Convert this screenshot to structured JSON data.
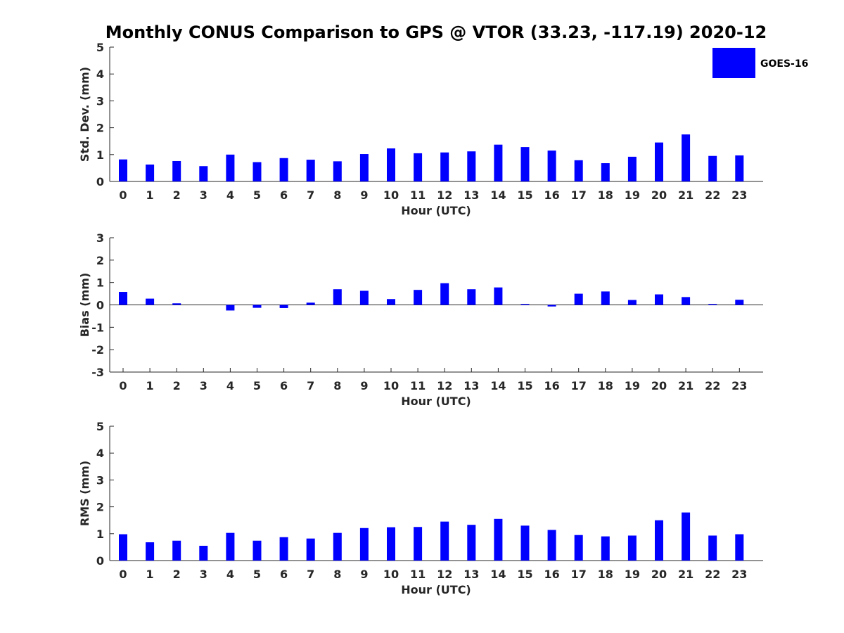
{
  "title": "Monthly CONUS Comparison to GPS @ VTOR (33.23, -117.19) 2020-12",
  "legend": {
    "label": "GOES-16",
    "color": "#0000ff"
  },
  "chart_data": [
    {
      "type": "bar",
      "name": "std-dev",
      "xlabel": "Hour (UTC)",
      "ylabel": "Std. Dev. (mm)",
      "ylim": [
        0,
        5
      ],
      "yticks": [
        0,
        1,
        2,
        3,
        4,
        5
      ],
      "categories": [
        "0",
        "1",
        "2",
        "3",
        "4",
        "5",
        "6",
        "7",
        "8",
        "9",
        "10",
        "11",
        "12",
        "13",
        "14",
        "15",
        "16",
        "17",
        "18",
        "19",
        "20",
        "21",
        "22",
        "23"
      ],
      "series": [
        {
          "name": "GOES-16",
          "values": [
            0.82,
            0.63,
            0.76,
            0.57,
            1.0,
            0.72,
            0.87,
            0.81,
            0.75,
            1.02,
            1.23,
            1.05,
            1.08,
            1.12,
            1.37,
            1.28,
            1.15,
            0.79,
            0.68,
            0.92,
            1.45,
            1.75,
            0.95,
            0.97
          ]
        }
      ]
    },
    {
      "type": "bar",
      "name": "bias",
      "xlabel": "Hour (UTC)",
      "ylabel": "Bias (mm)",
      "ylim": [
        -3,
        3
      ],
      "yticks": [
        -3,
        -2,
        -1,
        0,
        1,
        2,
        3
      ],
      "categories": [
        "0",
        "1",
        "2",
        "3",
        "4",
        "5",
        "6",
        "7",
        "8",
        "9",
        "10",
        "11",
        "12",
        "13",
        "14",
        "15",
        "16",
        "17",
        "18",
        "19",
        "20",
        "21",
        "22",
        "23"
      ],
      "series": [
        {
          "name": "GOES-16",
          "values": [
            0.58,
            0.28,
            0.07,
            0.0,
            -0.25,
            -0.13,
            -0.14,
            0.1,
            0.7,
            0.63,
            0.26,
            0.67,
            0.97,
            0.7,
            0.78,
            0.04,
            -0.07,
            0.5,
            0.6,
            0.22,
            0.47,
            0.35,
            0.04,
            0.23
          ]
        }
      ]
    },
    {
      "type": "bar",
      "name": "rms",
      "xlabel": "Hour (UTC)",
      "ylabel": "RMS (mm)",
      "ylim": [
        0,
        5
      ],
      "yticks": [
        0,
        1,
        2,
        3,
        4,
        5
      ],
      "categories": [
        "0",
        "1",
        "2",
        "3",
        "4",
        "5",
        "6",
        "7",
        "8",
        "9",
        "10",
        "11",
        "12",
        "13",
        "14",
        "15",
        "16",
        "17",
        "18",
        "19",
        "20",
        "21",
        "22",
        "23"
      ],
      "series": [
        {
          "name": "GOES-16",
          "values": [
            0.98,
            0.68,
            0.74,
            0.55,
            1.03,
            0.74,
            0.87,
            0.82,
            1.03,
            1.21,
            1.24,
            1.25,
            1.45,
            1.33,
            1.55,
            1.3,
            1.14,
            0.95,
            0.9,
            0.93,
            1.5,
            1.79,
            0.93,
            0.98
          ]
        }
      ]
    }
  ]
}
